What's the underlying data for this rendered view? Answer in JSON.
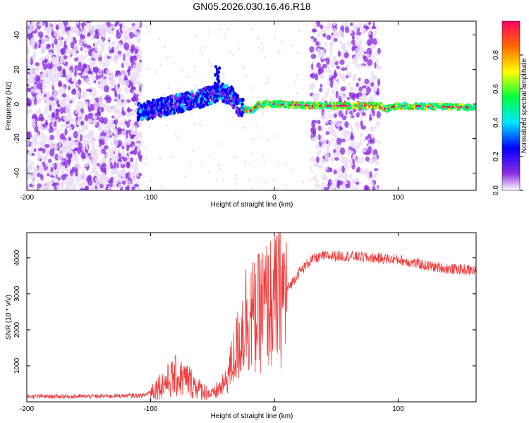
{
  "title": "GN05.2026.030.16.46.R18",
  "colors": {
    "axis": "#000000",
    "snr_line": "#f03a3a",
    "background": "#ffffff"
  },
  "chart_data": [
    {
      "type": "heatmap",
      "name": "spectrogram",
      "xlabel": "Height of straight line (km)",
      "ylabel": "Frequency (Hz)",
      "xlim": [
        -200,
        163
      ],
      "ylim": [
        -50,
        48
      ],
      "xticks": [
        -200,
        -100,
        0,
        100
      ],
      "yticks": [
        -40,
        -20,
        0,
        20,
        40
      ],
      "colorbar": {
        "label": "Normalized spectral amplitude",
        "range": [
          0,
          1
        ],
        "ticks": [
          "0.0",
          "0.2",
          "0.4",
          "0.6",
          "0.8"
        ],
        "colormap": [
          "#e9dcf7",
          "#8a2be2",
          "#0000ff",
          "#00e5ff",
          "#00ff40",
          "#ffff00",
          "#ff6a00",
          "#ff0060"
        ]
      },
      "frequency_track": [
        {
          "x": -110,
          "y": -5
        },
        {
          "x": -80,
          "y": 0
        },
        {
          "x": -60,
          "y": 3
        },
        {
          "x": -45,
          "y": 7
        },
        {
          "x": -35,
          "y": 5
        },
        {
          "x": -28,
          "y": -2
        },
        {
          "x": -18,
          "y": -4
        },
        {
          "x": -12,
          "y": 0
        },
        {
          "x": 0,
          "y": 0
        },
        {
          "x": 30,
          "y": -1
        },
        {
          "x": 85,
          "y": -1
        },
        {
          "x": 90,
          "y": -3
        },
        {
          "x": 100,
          "y": -1
        },
        {
          "x": 163,
          "y": -2
        }
      ],
      "noise_regions": [
        {
          "x_start": -200,
          "x_end": -108,
          "density": "high"
        },
        {
          "x_start": 30,
          "x_end": 85,
          "density": "medium"
        }
      ]
    },
    {
      "type": "line",
      "name": "snr",
      "xlabel": "Height of straight line (km)",
      "ylabel": "SNR (10 * v/v)",
      "xlim": [
        -200,
        163
      ],
      "ylim": [
        0,
        4700
      ],
      "xticks": [
        -200,
        -100,
        0,
        100
      ],
      "yticks": [
        1000,
        2000,
        3000,
        4000
      ],
      "envelope": [
        {
          "x": -200,
          "y": 150
        },
        {
          "x": -150,
          "y": 150
        },
        {
          "x": -105,
          "y": 180
        },
        {
          "x": -95,
          "y": 400
        },
        {
          "x": -80,
          "y": 700
        },
        {
          "x": -70,
          "y": 600
        },
        {
          "x": -60,
          "y": 350
        },
        {
          "x": -50,
          "y": 200
        },
        {
          "x": -40,
          "y": 500
        },
        {
          "x": -30,
          "y": 1500
        },
        {
          "x": -22,
          "y": 2500
        },
        {
          "x": -15,
          "y": 2300
        },
        {
          "x": -10,
          "y": 2600
        },
        {
          "x": 0,
          "y": 2800
        },
        {
          "x": 10,
          "y": 3100
        },
        {
          "x": 20,
          "y": 3600
        },
        {
          "x": 30,
          "y": 3950
        },
        {
          "x": 40,
          "y": 4050
        },
        {
          "x": 60,
          "y": 4050
        },
        {
          "x": 80,
          "y": 4000
        },
        {
          "x": 100,
          "y": 3950
        },
        {
          "x": 120,
          "y": 3800
        },
        {
          "x": 140,
          "y": 3700
        },
        {
          "x": 163,
          "y": 3650
        }
      ]
    }
  ]
}
